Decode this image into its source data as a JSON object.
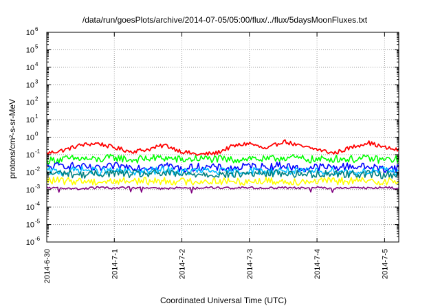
{
  "chart_data": {
    "type": "line",
    "title": "/data/run/goesPlots/archive/2014-07-05/05:00/flux/../flux/5daysMoonFluxes.txt",
    "xlabel": "Coordinated Universal Time (UTC)",
    "ylabel": "protons/cm²-s-sr-MeV",
    "yscale": "log",
    "ylim": [
      1e-06,
      1000000.0
    ],
    "y_ticks": [
      {
        "value": -6,
        "label": "10",
        "exp": "-6"
      },
      {
        "value": -5,
        "label": "10",
        "exp": "-5"
      },
      {
        "value": -4,
        "label": "10",
        "exp": "-4"
      },
      {
        "value": -3,
        "label": "10",
        "exp": "-3"
      },
      {
        "value": -2,
        "label": "10",
        "exp": "-2"
      },
      {
        "value": -1,
        "label": "10",
        "exp": "-1"
      },
      {
        "value": 0,
        "label": "10",
        "exp": "0"
      },
      {
        "value": 1,
        "label": "10",
        "exp": "1"
      },
      {
        "value": 2,
        "label": "10",
        "exp": "2"
      },
      {
        "value": 3,
        "label": "10",
        "exp": "3"
      },
      {
        "value": 4,
        "label": "10",
        "exp": "4"
      },
      {
        "value": 5,
        "label": "10",
        "exp": "5"
      },
      {
        "value": 6,
        "label": "10",
        "exp": "6"
      }
    ],
    "xlim": [
      "2014-06-30 00:00",
      "2014-07-05 05:00"
    ],
    "x_ticks": [
      {
        "value": 0,
        "label": "2014-6-30"
      },
      {
        "value": 1,
        "label": "2014-7-1"
      },
      {
        "value": 2,
        "label": "2014-7-2"
      },
      {
        "value": 3,
        "label": "2014-7-3"
      },
      {
        "value": 4,
        "label": "2014-7-4"
      },
      {
        "value": 5,
        "label": "2014-7-5"
      }
    ],
    "grid": true,
    "series": [
      {
        "color": "#ff0000",
        "x": [
          0,
          0.25,
          0.5,
          0.75,
          1.0,
          1.25,
          1.5,
          1.75,
          2.0,
          2.25,
          2.5,
          2.75,
          3.0,
          3.25,
          3.5,
          3.75,
          4.0,
          4.25,
          4.5,
          4.75,
          5.0,
          5.21
        ],
        "y": [
          0.12,
          0.18,
          0.35,
          0.45,
          0.25,
          0.15,
          0.2,
          0.35,
          0.15,
          0.1,
          0.12,
          0.3,
          0.45,
          0.2,
          0.6,
          0.3,
          0.2,
          0.12,
          0.25,
          0.5,
          0.25,
          0.18
        ]
      },
      {
        "color": "#00ff00",
        "x": [
          0,
          0.25,
          0.5,
          0.75,
          1.0,
          1.25,
          1.5,
          1.75,
          2.0,
          2.25,
          2.5,
          2.75,
          3.0,
          3.25,
          3.5,
          3.75,
          4.0,
          4.25,
          4.5,
          4.75,
          5.0,
          5.21
        ],
        "y": [
          0.045,
          0.055,
          0.06,
          0.05,
          0.07,
          0.05,
          0.06,
          0.065,
          0.05,
          0.06,
          0.055,
          0.05,
          0.065,
          0.05,
          0.07,
          0.06,
          0.05,
          0.06,
          0.055,
          0.06,
          0.05,
          0.055
        ]
      },
      {
        "color": "#0000ff",
        "x": [
          0,
          0.25,
          0.5,
          0.75,
          1.0,
          1.25,
          1.5,
          1.75,
          2.0,
          2.25,
          2.5,
          2.75,
          3.0,
          3.25,
          3.5,
          3.75,
          4.0,
          4.25,
          4.5,
          4.75,
          5.0,
          5.21
        ],
        "y": [
          0.018,
          0.025,
          0.02,
          0.015,
          0.022,
          0.02,
          0.018,
          0.025,
          0.015,
          0.02,
          0.018,
          0.016,
          0.022,
          0.02,
          0.025,
          0.015,
          0.02,
          0.018,
          0.022,
          0.02,
          0.015,
          0.018
        ]
      },
      {
        "color": "#00bfff",
        "x": [
          0,
          0.25,
          0.5,
          0.75,
          1.0,
          1.25,
          1.5,
          1.75,
          2.0,
          2.25,
          2.5,
          2.75,
          3.0,
          3.25,
          3.5,
          3.75,
          4.0,
          4.25,
          4.5,
          4.75,
          5.0,
          5.21
        ],
        "y": [
          0.012,
          0.01,
          0.014,
          0.011,
          0.012,
          0.01,
          0.011,
          0.013,
          0.01,
          0.012,
          0.011,
          0.01,
          0.012,
          0.011,
          0.013,
          0.01,
          0.011,
          0.012,
          0.01,
          0.011,
          0.012,
          0.011
        ]
      },
      {
        "color": "#008080",
        "x": [
          0,
          0.25,
          0.5,
          0.75,
          1.0,
          1.25,
          1.5,
          1.75,
          2.0,
          2.25,
          2.5,
          2.75,
          3.0,
          3.25,
          3.5,
          3.75,
          4.0,
          4.25,
          4.5,
          4.75,
          5.0,
          5.21
        ],
        "y": [
          0.008,
          0.009,
          0.007,
          0.008,
          0.009,
          0.0075,
          0.008,
          0.0085,
          0.007,
          0.008,
          0.0075,
          0.007,
          0.0085,
          0.008,
          0.009,
          0.0075,
          0.008,
          0.0085,
          0.0075,
          0.008,
          0.007,
          0.008
        ]
      },
      {
        "color": "#ffff00",
        "x": [
          0,
          0.25,
          0.5,
          0.75,
          1.0,
          1.25,
          1.5,
          1.75,
          2.0,
          2.25,
          2.5,
          2.75,
          3.0,
          3.25,
          3.5,
          3.75,
          4.0,
          4.25,
          4.5,
          4.75,
          5.0,
          5.21
        ],
        "y": [
          0.0035,
          0.003,
          0.0032,
          0.0028,
          0.003,
          0.0033,
          0.003,
          0.0032,
          0.0029,
          0.003,
          0.0031,
          0.0028,
          0.003,
          0.0032,
          0.0029,
          0.003,
          0.0031,
          0.003,
          0.0032,
          0.0029,
          0.003,
          0.003
        ]
      },
      {
        "color": "#800080",
        "x": [
          0,
          0.25,
          0.5,
          0.75,
          1.0,
          1.25,
          1.5,
          1.75,
          2.0,
          2.25,
          2.5,
          2.75,
          3.0,
          3.25,
          3.5,
          3.75,
          4.0,
          4.25,
          4.5,
          4.75,
          5.0,
          5.21
        ],
        "y": [
          0.0013,
          0.0012,
          0.0011,
          0.0013,
          0.0012,
          0.0013,
          0.0012,
          0.0011,
          0.0013,
          0.0012,
          0.0013,
          0.0012,
          0.0013,
          0.0012,
          0.0013,
          0.0012,
          0.0013,
          0.0012,
          0.0013,
          0.0012,
          0.0013,
          0.0012
        ]
      }
    ]
  }
}
